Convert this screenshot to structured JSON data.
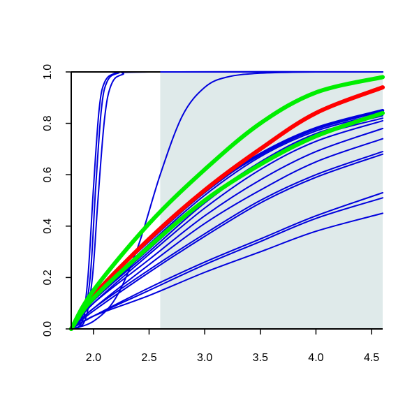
{
  "chart_data": {
    "type": "line",
    "title": "",
    "xlabel": "",
    "ylabel": "",
    "xlim": [
      1.8,
      4.6
    ],
    "ylim": [
      0.0,
      1.0
    ],
    "x_ticks": [
      "2.0",
      "2.5",
      "3.0",
      "3.5",
      "4.0",
      "4.5"
    ],
    "x_tick_values": [
      2.0,
      2.5,
      3.0,
      3.5,
      4.0,
      4.5
    ],
    "y_ticks": [
      "0.0",
      "0.2",
      "0.4",
      "0.6",
      "0.8",
      "1.0"
    ],
    "y_tick_values": [
      0.0,
      0.2,
      0.4,
      0.6,
      0.8,
      1.0
    ],
    "shaded_region": {
      "x_from": 2.6,
      "x_to": 4.6,
      "y_from": 0.0,
      "y_to": 1.0,
      "color": "#dfeaea"
    },
    "grid": false,
    "colors": {
      "blue": "#0000dd",
      "red": "#ff0000",
      "green": "#00ee00"
    },
    "series": [
      {
        "color": "#0000dd",
        "width": 2,
        "points": [
          [
            1.8,
            0
          ],
          [
            1.9,
            0.05
          ],
          [
            1.95,
            0.2
          ],
          [
            2.0,
            0.55
          ],
          [
            2.05,
            0.85
          ],
          [
            2.1,
            0.96
          ],
          [
            2.2,
            0.995
          ],
          [
            2.4,
            1.0
          ],
          [
            4.6,
            1.0
          ]
        ]
      },
      {
        "color": "#0000dd",
        "width": 2,
        "points": [
          [
            1.8,
            0
          ],
          [
            1.9,
            0.03
          ],
          [
            1.97,
            0.2
          ],
          [
            2.02,
            0.55
          ],
          [
            2.07,
            0.85
          ],
          [
            2.12,
            0.96
          ],
          [
            2.22,
            0.995
          ],
          [
            2.45,
            1.0
          ],
          [
            4.6,
            1.0
          ]
        ]
      },
      {
        "color": "#0000dd",
        "width": 2,
        "points": [
          [
            1.8,
            0
          ],
          [
            1.92,
            0.03
          ],
          [
            1.99,
            0.2
          ],
          [
            2.04,
            0.5
          ],
          [
            2.1,
            0.82
          ],
          [
            2.16,
            0.95
          ],
          [
            2.26,
            0.99
          ],
          [
            2.5,
            1.0
          ],
          [
            4.6,
            1.0
          ]
        ]
      },
      {
        "color": "#0000dd",
        "width": 2,
        "points": [
          [
            1.8,
            0
          ],
          [
            2.0,
            0.03
          ],
          [
            2.2,
            0.12
          ],
          [
            2.4,
            0.32
          ],
          [
            2.6,
            0.6
          ],
          [
            2.8,
            0.83
          ],
          [
            3.0,
            0.94
          ],
          [
            3.2,
            0.98
          ],
          [
            3.5,
            0.995
          ],
          [
            4.0,
            1.0
          ],
          [
            4.6,
            1.0
          ]
        ]
      },
      {
        "color": "#0000dd",
        "width": 2,
        "points": [
          [
            1.8,
            0
          ],
          [
            2.0,
            0.13
          ],
          [
            2.5,
            0.34
          ],
          [
            3.0,
            0.53
          ],
          [
            3.5,
            0.68
          ],
          [
            4.0,
            0.78
          ],
          [
            4.6,
            0.85
          ]
        ]
      },
      {
        "color": "#0000dd",
        "width": 2,
        "points": [
          [
            1.8,
            0
          ],
          [
            2.0,
            0.12
          ],
          [
            2.5,
            0.33
          ],
          [
            3.0,
            0.52
          ],
          [
            3.5,
            0.67
          ],
          [
            4.0,
            0.77
          ],
          [
            4.6,
            0.84
          ]
        ]
      },
      {
        "color": "#0000dd",
        "width": 2,
        "points": [
          [
            1.8,
            0
          ],
          [
            2.0,
            0.11
          ],
          [
            2.5,
            0.31
          ],
          [
            3.0,
            0.5
          ],
          [
            3.5,
            0.65
          ],
          [
            4.0,
            0.76
          ],
          [
            4.6,
            0.83
          ]
        ]
      },
      {
        "color": "#0000dd",
        "width": 2,
        "points": [
          [
            1.8,
            0
          ],
          [
            2.0,
            0.11
          ],
          [
            2.5,
            0.3
          ],
          [
            3.0,
            0.49
          ],
          [
            3.5,
            0.64
          ],
          [
            4.0,
            0.75
          ],
          [
            4.6,
            0.82
          ]
        ]
      },
      {
        "color": "#0000dd",
        "width": 2,
        "points": [
          [
            1.8,
            0
          ],
          [
            2.0,
            0.1
          ],
          [
            2.5,
            0.29
          ],
          [
            3.0,
            0.47
          ],
          [
            3.5,
            0.62
          ],
          [
            4.0,
            0.73
          ],
          [
            4.6,
            0.81
          ]
        ]
      },
      {
        "color": "#0000dd",
        "width": 2,
        "points": [
          [
            1.8,
            0
          ],
          [
            2.0,
            0.1
          ],
          [
            2.5,
            0.27
          ],
          [
            3.0,
            0.44
          ],
          [
            3.5,
            0.58
          ],
          [
            4.0,
            0.69
          ],
          [
            4.6,
            0.78
          ]
        ]
      },
      {
        "color": "#0000dd",
        "width": 2,
        "points": [
          [
            1.8,
            0
          ],
          [
            2.0,
            0.08
          ],
          [
            2.5,
            0.25
          ],
          [
            3.0,
            0.41
          ],
          [
            3.5,
            0.54
          ],
          [
            4.0,
            0.65
          ],
          [
            4.6,
            0.74
          ]
        ]
      },
      {
        "color": "#0000dd",
        "width": 2,
        "points": [
          [
            1.8,
            0
          ],
          [
            2.0,
            0.08
          ],
          [
            2.5,
            0.23
          ],
          [
            3.0,
            0.37
          ],
          [
            3.5,
            0.5
          ],
          [
            4.0,
            0.6
          ],
          [
            4.6,
            0.69
          ]
        ]
      },
      {
        "color": "#0000dd",
        "width": 2,
        "points": [
          [
            1.8,
            0
          ],
          [
            2.0,
            0.07
          ],
          [
            2.5,
            0.22
          ],
          [
            3.0,
            0.36
          ],
          [
            3.5,
            0.49
          ],
          [
            4.0,
            0.59
          ],
          [
            4.6,
            0.68
          ]
        ]
      },
      {
        "color": "#0000dd",
        "width": 2,
        "points": [
          [
            1.8,
            0
          ],
          [
            2.0,
            0.05
          ],
          [
            2.5,
            0.16
          ],
          [
            3.0,
            0.26
          ],
          [
            3.5,
            0.35
          ],
          [
            4.0,
            0.44
          ],
          [
            4.6,
            0.53
          ]
        ]
      },
      {
        "color": "#0000dd",
        "width": 2,
        "points": [
          [
            1.8,
            0
          ],
          [
            2.0,
            0.05
          ],
          [
            2.5,
            0.15
          ],
          [
            3.0,
            0.25
          ],
          [
            3.5,
            0.34
          ],
          [
            4.0,
            0.43
          ],
          [
            4.6,
            0.51
          ]
        ]
      },
      {
        "color": "#0000dd",
        "width": 2,
        "points": [
          [
            1.8,
            0
          ],
          [
            2.0,
            0.05
          ],
          [
            2.5,
            0.13
          ],
          [
            3.0,
            0.22
          ],
          [
            3.5,
            0.3
          ],
          [
            4.0,
            0.38
          ],
          [
            4.6,
            0.45
          ]
        ]
      },
      {
        "color": "#0000dd",
        "width": 4.5,
        "points": [
          [
            1.8,
            0
          ],
          [
            2.0,
            0.13
          ],
          [
            2.5,
            0.35
          ],
          [
            3.0,
            0.54
          ],
          [
            3.5,
            0.68
          ],
          [
            4.0,
            0.78
          ],
          [
            4.6,
            0.85
          ]
        ]
      },
      {
        "color": "#ff0000",
        "width": 6,
        "points": [
          [
            1.8,
            0
          ],
          [
            2.0,
            0.13
          ],
          [
            2.5,
            0.35
          ],
          [
            3.0,
            0.54
          ],
          [
            3.5,
            0.7
          ],
          [
            4.0,
            0.84
          ],
          [
            4.6,
            0.94
          ]
        ]
      },
      {
        "color": "#00ee00",
        "width": 6,
        "points": [
          [
            1.8,
            0
          ],
          [
            2.0,
            0.15
          ],
          [
            2.5,
            0.41
          ],
          [
            3.0,
            0.62
          ],
          [
            3.5,
            0.8
          ],
          [
            4.0,
            0.92
          ],
          [
            4.6,
            0.98
          ]
        ]
      },
      {
        "color": "#00ee00",
        "width": 6,
        "points": [
          [
            1.8,
            0
          ],
          [
            2.0,
            0.12
          ],
          [
            2.5,
            0.32
          ],
          [
            3.0,
            0.5
          ],
          [
            3.5,
            0.64
          ],
          [
            4.0,
            0.75
          ],
          [
            4.6,
            0.84
          ]
        ]
      }
    ]
  }
}
